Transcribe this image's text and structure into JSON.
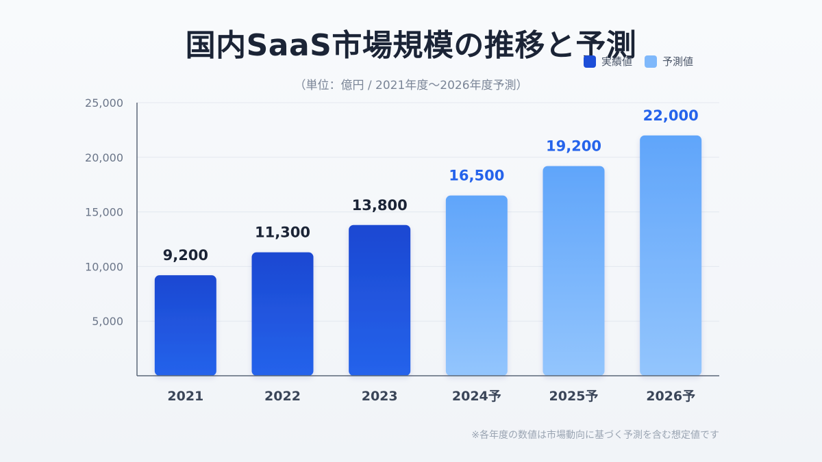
{
  "header": {
    "title": "国内SaaS市場規模の推移と予測",
    "subtitle": "（単位：億円 / 2021年度〜2026年度予測）"
  },
  "legend": [
    {
      "label": "実績値",
      "color": "#1d4ed8"
    },
    {
      "label": "予測値",
      "color": "#7fb8fb"
    }
  ],
  "footnote": "※各年度の数値は市場動向に基づく予測を含む想定値です",
  "chart_data": {
    "type": "bar",
    "categories": [
      "2021",
      "2022",
      "2023",
      "2024予",
      "2025予",
      "2026予"
    ],
    "values": [
      9200,
      11300,
      13800,
      16500,
      19200,
      22000
    ],
    "value_labels": [
      "9,200",
      "11,300",
      "13,800",
      "16,500",
      "19,200",
      "22,000"
    ],
    "kind": [
      "actual",
      "actual",
      "actual",
      "forecast",
      "forecast",
      "forecast"
    ],
    "ylim": [
      0,
      25000
    ],
    "yticks": [
      5000,
      10000,
      15000,
      20000,
      25000
    ],
    "ytick_labels": [
      "5,000",
      "10,000",
      "15,000",
      "20,000",
      "25,000"
    ],
    "grid": true,
    "colors": {
      "actual_top": "#1c48d2",
      "actual_bottom": "#2563eb",
      "forecast_top": "#60a5fa",
      "forecast_bottom": "#93c5fd",
      "actual_label": "#1b2436",
      "forecast_label": "#2563eb"
    }
  }
}
